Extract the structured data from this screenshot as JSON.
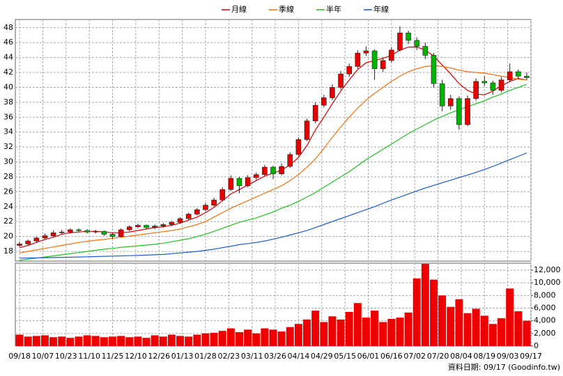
{
  "chart_data": {
    "type": "candlestick",
    "x": [
      0,
      4,
      8,
      12,
      16,
      20,
      24,
      28,
      32,
      36,
      40,
      44,
      48,
      52,
      56,
      60,
      64,
      68,
      72,
      76,
      80,
      84,
      88,
      92,
      96,
      100,
      104,
      108,
      112,
      116,
      120,
      124,
      128,
      132,
      136,
      140,
      144,
      148,
      152,
      156,
      160,
      164,
      168,
      172,
      176,
      180,
      184,
      188,
      192,
      196,
      200,
      204,
      208,
      212,
      216,
      220,
      224,
      228,
      232,
      236,
      240
    ],
    "open": [
      18.8,
      19.0,
      19.4,
      19.8,
      20.1,
      20.5,
      20.6,
      20.9,
      20.8,
      20.6,
      20.7,
      20.3,
      20.0,
      20.9,
      21.3,
      21.5,
      21.2,
      21.4,
      21.6,
      21.9,
      22.4,
      23.0,
      23.6,
      24.2,
      24.9,
      26.3,
      27.8,
      26.8,
      27.9,
      28.3,
      29.3,
      28.4,
      29.4,
      31.0,
      33.0,
      35.5,
      37.6,
      38.6,
      40.0,
      41.8,
      42.8,
      44.6,
      44.9,
      42.5,
      43.6,
      45.0,
      47.3,
      46.3,
      45.5,
      44.3,
      40.5,
      37.5,
      38.5,
      35.0,
      38.5,
      40.8,
      40.6,
      39.6,
      41.0,
      42.1,
      41.5
    ],
    "high": [
      19.3,
      19.6,
      20.0,
      20.4,
      20.8,
      20.9,
      21.1,
      21.1,
      21.0,
      20.9,
      20.8,
      20.5,
      21.1,
      21.5,
      21.7,
      21.6,
      21.6,
      21.8,
      22.1,
      22.6,
      23.2,
      23.8,
      24.5,
      25.2,
      26.6,
      28.2,
      28.0,
      28.2,
      28.6,
      29.6,
      29.5,
      29.8,
      31.3,
      33.3,
      35.8,
      38.0,
      39.0,
      40.4,
      42.2,
      43.2,
      45.0,
      45.5,
      45.1,
      44.0,
      45.4,
      48.2,
      47.6,
      46.7,
      46.0,
      44.6,
      41.0,
      39.0,
      38.8,
      38.9,
      41.2,
      41.5,
      40.9,
      41.4,
      43.2,
      42.4,
      42.0
    ],
    "low": [
      18.6,
      18.8,
      19.2,
      19.6,
      19.9,
      20.3,
      20.4,
      20.6,
      20.4,
      20.4,
      20.1,
      19.7,
      19.9,
      20.7,
      21.1,
      21.0,
      21.0,
      21.2,
      21.4,
      21.7,
      22.2,
      22.8,
      23.4,
      24.0,
      24.7,
      26.1,
      25.8,
      26.6,
      27.6,
      28.1,
      27.7,
      28.2,
      29.2,
      30.8,
      32.8,
      35.2,
      37.3,
      38.3,
      39.7,
      41.4,
      42.5,
      44.2,
      41.0,
      42.1,
      43.3,
      44.8,
      45.8,
      45.0,
      43.8,
      40.0,
      36.8,
      37.0,
      34.3,
      34.8,
      38.2,
      40.2,
      39.0,
      39.3,
      40.7,
      41.1,
      41.0
    ],
    "close": [
      19.0,
      19.4,
      19.8,
      20.1,
      20.5,
      20.6,
      20.9,
      20.8,
      20.6,
      20.7,
      20.3,
      20.0,
      20.9,
      21.3,
      21.5,
      21.2,
      21.4,
      21.6,
      21.9,
      22.4,
      23.0,
      23.6,
      24.2,
      24.9,
      26.3,
      27.8,
      26.8,
      27.9,
      28.3,
      29.3,
      28.4,
      29.4,
      31.0,
      33.0,
      35.5,
      37.6,
      38.6,
      40.0,
      41.8,
      42.8,
      44.6,
      44.9,
      42.5,
      43.6,
      45.0,
      47.3,
      46.3,
      45.5,
      44.3,
      40.5,
      37.5,
      38.5,
      35.0,
      38.5,
      40.8,
      40.6,
      39.6,
      41.0,
      42.1,
      41.5,
      41.3
    ],
    "up_color": "#e80000",
    "down_color": "#00b400",
    "series": [
      {
        "name": "月線",
        "color": "#d40000",
        "values": [
          18.5,
          18.8,
          19.2,
          19.6,
          19.9,
          20.3,
          20.5,
          20.6,
          20.7,
          20.7,
          20.6,
          20.5,
          20.5,
          20.6,
          20.8,
          21.0,
          21.2,
          21.3,
          21.5,
          21.8,
          22.2,
          22.6,
          23.2,
          23.9,
          24.8,
          25.7,
          26.3,
          26.9,
          27.5,
          28.1,
          28.5,
          28.9,
          29.6,
          30.6,
          32.2,
          34.3,
          36.0,
          37.8,
          39.5,
          41.0,
          42.4,
          43.3,
          43.6,
          43.9,
          44.3,
          45.0,
          45.4,
          45.4,
          45.0,
          44.2,
          43.0,
          41.8,
          40.5,
          39.6,
          39.1,
          39.0,
          39.5,
          40.2,
          40.8,
          41.2,
          41.0
        ]
      },
      {
        "name": "季線",
        "color": "#f07010",
        "values": [
          17.8,
          18.0,
          18.2,
          18.4,
          18.6,
          18.8,
          19.0,
          19.2,
          19.35,
          19.5,
          19.6,
          19.75,
          19.9,
          20.05,
          20.2,
          20.35,
          20.5,
          20.65,
          20.8,
          21.0,
          21.3,
          21.6,
          22.0,
          22.6,
          23.2,
          23.8,
          24.3,
          24.8,
          25.3,
          25.8,
          26.3,
          26.8,
          27.5,
          28.3,
          29.3,
          30.4,
          31.8,
          33.3,
          34.7,
          36.0,
          37.2,
          38.3,
          39.2,
          40.0,
          40.8,
          41.5,
          42.1,
          42.5,
          42.8,
          42.9,
          42.8,
          42.6,
          42.3,
          42.1,
          42.0,
          41.9,
          41.7,
          41.5,
          41.3,
          41.1,
          41.0
        ]
      },
      {
        "name": "半年",
        "color": "#20c020",
        "values": [
          16.8,
          16.95,
          17.1,
          17.25,
          17.4,
          17.55,
          17.7,
          17.85,
          18.0,
          18.15,
          18.3,
          18.4,
          18.55,
          18.65,
          18.75,
          18.85,
          18.95,
          19.1,
          19.3,
          19.5,
          19.7,
          20.0,
          20.3,
          20.7,
          21.1,
          21.5,
          21.9,
          22.2,
          22.5,
          22.9,
          23.3,
          23.8,
          24.2,
          24.7,
          25.3,
          25.9,
          26.6,
          27.3,
          28.0,
          28.7,
          29.5,
          30.3,
          31.0,
          31.7,
          32.4,
          33.1,
          33.8,
          34.4,
          35.0,
          35.6,
          36.1,
          36.6,
          37.0,
          37.4,
          37.8,
          38.2,
          38.7,
          39.1,
          39.6,
          40.0,
          40.4
        ]
      },
      {
        "name": "年線",
        "color": "#1a5cc8",
        "values": [
          17.1,
          17.12,
          17.14,
          17.16,
          17.18,
          17.2,
          17.22,
          17.25,
          17.28,
          17.31,
          17.34,
          17.37,
          17.4,
          17.43,
          17.46,
          17.5,
          17.55,
          17.6,
          17.7,
          17.8,
          17.9,
          18.0,
          18.15,
          18.3,
          18.5,
          18.7,
          18.9,
          19.05,
          19.2,
          19.4,
          19.65,
          19.9,
          20.2,
          20.5,
          20.8,
          21.2,
          21.6,
          22.0,
          22.4,
          22.8,
          23.2,
          23.6,
          24.0,
          24.45,
          24.9,
          25.3,
          25.7,
          26.1,
          26.5,
          26.85,
          27.2,
          27.55,
          27.9,
          28.25,
          28.6,
          29.0,
          29.4,
          29.85,
          30.3,
          30.75,
          31.2
        ]
      }
    ],
    "xlim": [
      -2,
      242
    ],
    "xticks": [
      {
        "value": 0,
        "label": "09/18"
      },
      {
        "value": 11,
        "label": "10/07"
      },
      {
        "value": 22,
        "label": "10/23"
      },
      {
        "value": 33,
        "label": "11/10"
      },
      {
        "value": 44,
        "label": "11/25"
      },
      {
        "value": 55,
        "label": "12/10"
      },
      {
        "value": 66,
        "label": "12/26"
      },
      {
        "value": 77,
        "label": "01/13"
      },
      {
        "value": 88,
        "label": "01/28"
      },
      {
        "value": 99,
        "label": "02/23"
      },
      {
        "value": 110,
        "label": "03/11"
      },
      {
        "value": 121,
        "label": "03/26"
      },
      {
        "value": 132,
        "label": "04/14"
      },
      {
        "value": 143,
        "label": "04/29"
      },
      {
        "value": 154,
        "label": "05/15"
      },
      {
        "value": 165,
        "label": "06/01"
      },
      {
        "value": 176,
        "label": "06/16"
      },
      {
        "value": 187,
        "label": "07/02"
      },
      {
        "value": 198,
        "label": "07/20"
      },
      {
        "value": 209,
        "label": "08/04"
      },
      {
        "value": 220,
        "label": "08/19"
      },
      {
        "value": 231,
        "label": "09/03"
      },
      {
        "value": 242,
        "label": "09/17"
      }
    ],
    "ylim": [
      16.7,
      49.1
    ],
    "yticks": [
      18,
      20,
      22,
      24,
      26,
      28,
      30,
      32,
      34,
      36,
      38,
      40,
      42,
      44,
      46,
      48
    ],
    "grid": true,
    "volume": {
      "color": "#ee0000",
      "values": [
        1800,
        1500,
        1600,
        1700,
        1400,
        1500,
        1300,
        1500,
        1700,
        1600,
        1400,
        1500,
        1600,
        1400,
        1500,
        1300,
        1700,
        1500,
        1800,
        1600,
        1500,
        1800,
        2000,
        2100,
        2400,
        2800,
        2200,
        2600,
        2000,
        2800,
        2600,
        2300,
        3000,
        3500,
        4200,
        5600,
        3800,
        4700,
        4200,
        5400,
        6800,
        4500,
        5600,
        3800,
        4300,
        4500,
        5300,
        10700,
        13000,
        10500,
        8000,
        6200,
        7400,
        5200,
        5900,
        4800,
        3500,
        4400,
        9100,
        5500,
        4000
      ],
      "ylim": [
        0,
        13100
      ],
      "yticks": [
        0,
        {
          "value": 2000,
          "label": "2,000"
        },
        {
          "value": 4000,
          "label": "4,000"
        },
        {
          "value": 6000,
          "label": "6,000"
        },
        {
          "value": 8000,
          "label": "8,000"
        },
        {
          "value": 10000,
          "label": "10,000"
        },
        {
          "value": 12000,
          "label": "12,000"
        }
      ]
    },
    "footer": "資料日期: 09/17 (Goodinfo.tw)"
  }
}
